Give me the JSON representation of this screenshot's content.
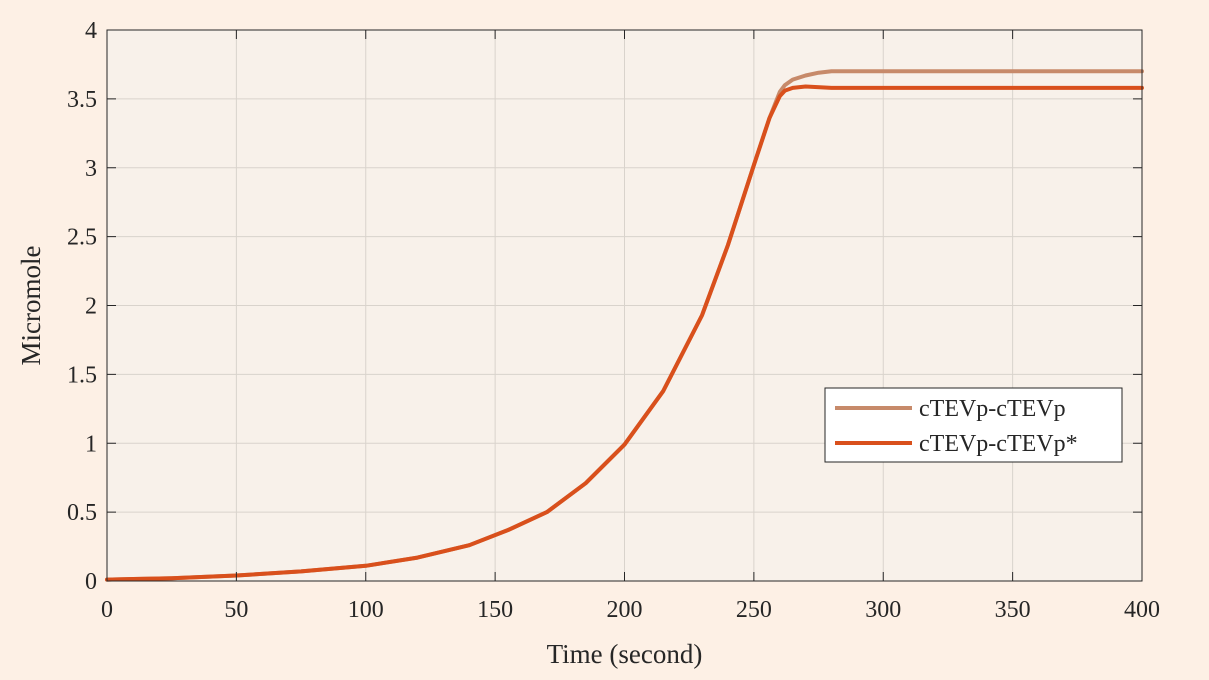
{
  "chart_data": {
    "type": "line",
    "xlabel": "Time (second)",
    "ylabel": "Micromole",
    "xlim": [
      0,
      400
    ],
    "ylim": [
      0,
      4
    ],
    "xticks": [
      0,
      50,
      100,
      150,
      200,
      250,
      300,
      350,
      400
    ],
    "yticks": [
      0,
      0.5,
      1,
      1.5,
      2,
      2.5,
      3,
      3.5,
      4
    ],
    "ytick_labels": [
      "0",
      "0.5",
      "1",
      "1.5",
      "2",
      "2.5",
      "3",
      "3.5",
      "4"
    ],
    "grid": true,
    "legend_position": "right",
    "series": [
      {
        "name": "cTEVp-cTEVp",
        "color": "#c78a6a",
        "x": [
          0,
          25,
          50,
          75,
          100,
          120,
          140,
          155,
          170,
          185,
          200,
          215,
          230,
          240,
          250,
          256,
          260,
          262,
          265,
          270,
          275,
          280,
          300,
          350,
          400
        ],
        "y": [
          0.01,
          0.02,
          0.04,
          0.07,
          0.11,
          0.17,
          0.26,
          0.37,
          0.5,
          0.71,
          0.99,
          1.38,
          1.93,
          2.44,
          3.02,
          3.36,
          3.55,
          3.6,
          3.64,
          3.67,
          3.69,
          3.7,
          3.7,
          3.7,
          3.7
        ]
      },
      {
        "name": "cTEVp-cTEVp*",
        "color": "#d9501c",
        "x": [
          0,
          25,
          50,
          75,
          100,
          120,
          140,
          155,
          170,
          185,
          200,
          215,
          230,
          240,
          250,
          256,
          260,
          262,
          265,
          270,
          280,
          300,
          350,
          400
        ],
        "y": [
          0.01,
          0.02,
          0.04,
          0.07,
          0.11,
          0.17,
          0.26,
          0.37,
          0.5,
          0.71,
          0.99,
          1.38,
          1.93,
          2.44,
          3.02,
          3.36,
          3.52,
          3.56,
          3.58,
          3.59,
          3.58,
          3.58,
          3.58,
          3.58
        ]
      }
    ]
  }
}
